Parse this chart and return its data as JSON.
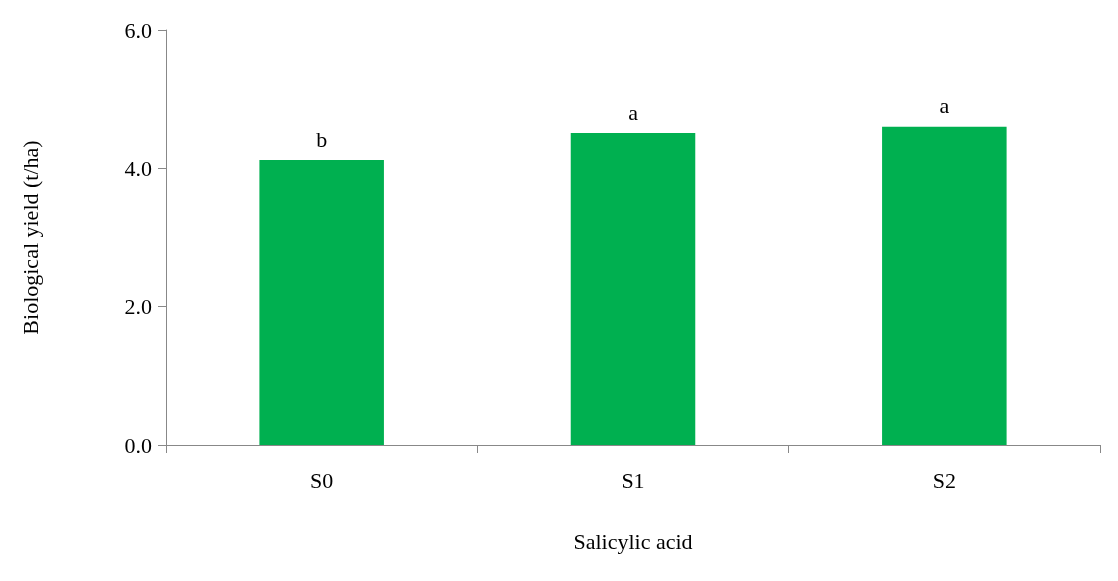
{
  "chart_data": {
    "type": "bar",
    "xlabel": "Salicylic acid",
    "ylabel": "Biological yield (t/ha)",
    "categories": [
      "S0",
      "S1",
      "S2"
    ],
    "values": [
      4.12,
      4.51,
      4.6
    ],
    "color": "#00b050",
    "ylim": [
      0,
      6
    ],
    "yticks": [
      {
        "value": 0,
        "label": "0.0"
      },
      {
        "value": 2,
        "label": "2.0"
      },
      {
        "value": 4,
        "label": "4.0"
      },
      {
        "value": 6,
        "label": "6.0"
      }
    ],
    "grid": false,
    "annotations": [
      {
        "text": "b",
        "x": "S0",
        "y": 4.12
      },
      {
        "text": "a",
        "x": "S1",
        "y": 4.51
      },
      {
        "text": "a",
        "x": "S2",
        "y": 4.6
      }
    ]
  }
}
